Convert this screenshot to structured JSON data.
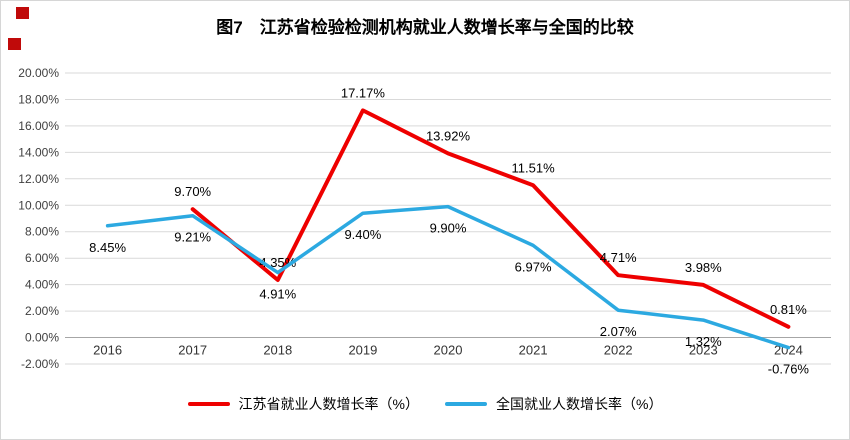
{
  "chart_data": {
    "type": "line",
    "title": "图7　江苏省检验检测机构就业人数增长率与全国的比较",
    "categories": [
      "2016",
      "2017",
      "2018",
      "2019",
      "2020",
      "2021",
      "2022",
      "2023",
      "2024"
    ],
    "series": [
      {
        "name": "江苏省就业人数增长率（%）",
        "color": "#ee0000",
        "label_position": "above",
        "values": [
          null,
          9.7,
          4.35,
          17.17,
          13.92,
          11.51,
          4.71,
          3.98,
          0.81
        ],
        "data_labels": [
          null,
          "9.70%",
          "4.35%",
          "17.17%",
          "13.92%",
          "11.51%",
          "4.71%",
          "3.98%",
          "0.81%"
        ]
      },
      {
        "name": "全国就业人数增长率（%）",
        "color": "#2ca9e1",
        "label_position": "below",
        "values": [
          8.45,
          9.21,
          4.91,
          9.4,
          9.9,
          6.97,
          2.07,
          1.32,
          -0.76
        ],
        "data_labels": [
          "8.45%",
          "9.21%",
          "4.91%",
          "9.40%",
          "9.90%",
          "6.97%",
          "2.07%",
          "1.32%",
          "-0.76%"
        ]
      }
    ],
    "y_axis": {
      "min": -2,
      "max": 20,
      "step": 2,
      "ticks": [
        {
          "value": 20,
          "label": "20.00%"
        },
        {
          "value": 18,
          "label": "18.00%"
        },
        {
          "value": 16,
          "label": "16.00%"
        },
        {
          "value": 14,
          "label": "14.00%"
        },
        {
          "value": 12,
          "label": "12.00%"
        },
        {
          "value": 10,
          "label": "10.00%"
        },
        {
          "value": 8,
          "label": "8.00%"
        },
        {
          "value": 6,
          "label": "6.00%"
        },
        {
          "value": 4,
          "label": "4.00%"
        },
        {
          "value": 2,
          "label": "2.00%"
        },
        {
          "value": 0,
          "label": "0.00%"
        },
        {
          "value": -2,
          "label": "-2.00%"
        }
      ]
    },
    "grid": true,
    "legend_position": "bottom",
    "xlabel": "",
    "ylabel": ""
  }
}
